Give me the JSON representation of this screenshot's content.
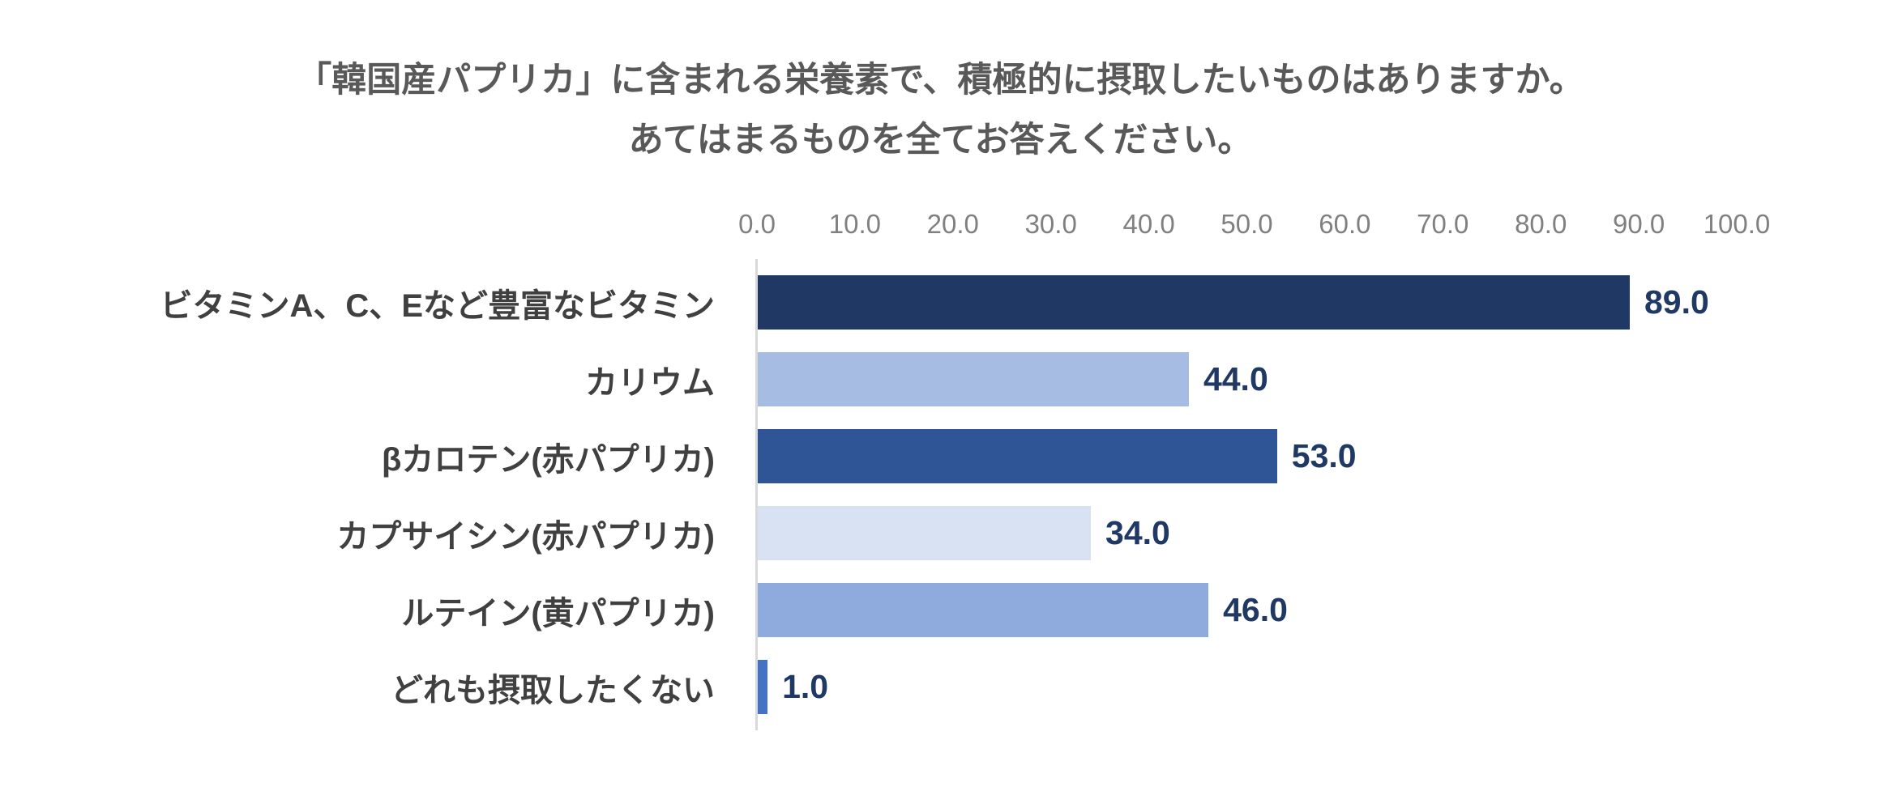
{
  "title": {
    "line1": "「韓国産パプリカ」に含まれる栄養素で、積極的に摂取したいものはありますか。",
    "line2": "あてはまるものを全てお答えください。"
  },
  "chart_data": {
    "type": "bar",
    "orientation": "horizontal",
    "title": "「韓国産パプリカ」に含まれる栄養素で、積極的に摂取したいものはありますか。あてはまるものを全てお答えください。",
    "categories": [
      "ビタミンA、C、Eなど豊富なビタミン",
      "カリウム",
      "βカロテン(赤パプリカ)",
      "カプサイシン(赤パプリカ)",
      "ルテイン(黄パプリカ)",
      "どれも摂取したくない"
    ],
    "values": [
      89.0,
      44.0,
      53.0,
      34.0,
      46.0,
      1.0
    ],
    "value_labels": [
      "89.0",
      "44.0",
      "53.0",
      "34.0",
      "46.0",
      "1.0"
    ],
    "bar_colors": [
      "#1F3864",
      "#A6BCE2",
      "#2F5597",
      "#D9E2F3",
      "#8FAADC",
      "#4472C4"
    ],
    "xlim": [
      0,
      100
    ],
    "tick_values": [
      0,
      10,
      20,
      30,
      40,
      50,
      60,
      70,
      80,
      90,
      100
    ],
    "x_tick_labels": [
      "0.0",
      "10.0",
      "20.0",
      "30.0",
      "40.0",
      "50.0",
      "60.0",
      "70.0",
      "80.0",
      "90.0",
      "100.0"
    ],
    "xlabel": "",
    "ylabel": "",
    "legend": "none",
    "grid": "none",
    "value_label_color": "#203864",
    "axis_line_color": "#D9D9D9",
    "title_color": "#595959",
    "tick_label_color": "#808080",
    "category_label_color": "#404040"
  }
}
